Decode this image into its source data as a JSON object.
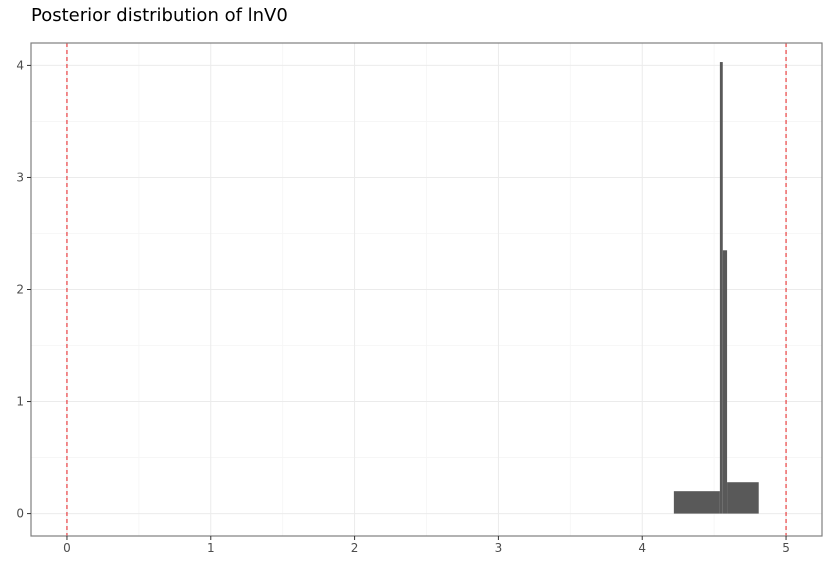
{
  "chart_data": {
    "type": "histogram",
    "title": "Posterior distribution of lnV0",
    "xlabel": "",
    "ylabel": "",
    "xlim": [
      -0.25,
      5.25
    ],
    "ylim": [
      -0.2,
      4.2
    ],
    "x_ticks": [
      0,
      1,
      2,
      3,
      4,
      5
    ],
    "y_ticks": [
      0,
      1,
      2,
      3,
      4
    ],
    "grid": true,
    "bins": [
      {
        "x0": 4.22,
        "x1": 4.54,
        "density": 0.2
      },
      {
        "x0": 4.54,
        "x1": 4.56,
        "density": 4.03
      },
      {
        "x0": 4.56,
        "x1": 4.59,
        "density": 2.35
      },
      {
        "x0": 4.59,
        "x1": 4.81,
        "density": 0.28
      }
    ],
    "bar_color": "#595959",
    "reference_lines": [
      {
        "x": 0,
        "color": "#e41a1c",
        "style": "dashed"
      },
      {
        "x": 5,
        "color": "#e41a1c",
        "style": "dashed"
      }
    ],
    "panel_border_color": "#7f7f7f",
    "grid_color": "#ebebeb"
  }
}
